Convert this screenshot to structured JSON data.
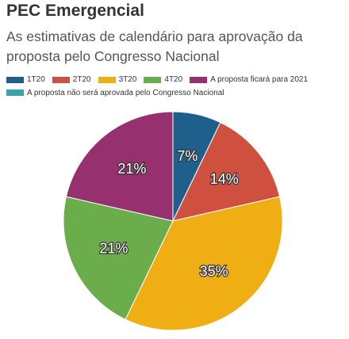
{
  "header": {
    "title": "PEC Emergencial",
    "subtitle": "As estimativas de calendário para aprovação da proposta pelo Congresso Nacional"
  },
  "chart_data": {
    "type": "pie",
    "title": "PEC Emergencial",
    "subtitle": "As estimativas de calendário para aprovação da proposta pelo Congresso Nacional",
    "categories": [
      "1T20",
      "2T20",
      "3T20",
      "4T20",
      "A proposta ficará para 2021",
      "A proposta não será aprovada pelo Congresso Nacional"
    ],
    "values": [
      7,
      14,
      35,
      21,
      21,
      0
    ],
    "labels": [
      "7%",
      "14%",
      "35%",
      "21%",
      "21%",
      ""
    ],
    "colors": [
      "#1f5f8b",
      "#d05040",
      "#eeae14",
      "#6aad4a",
      "#96306f",
      "#35a5a8"
    ],
    "legend_position": "top"
  }
}
